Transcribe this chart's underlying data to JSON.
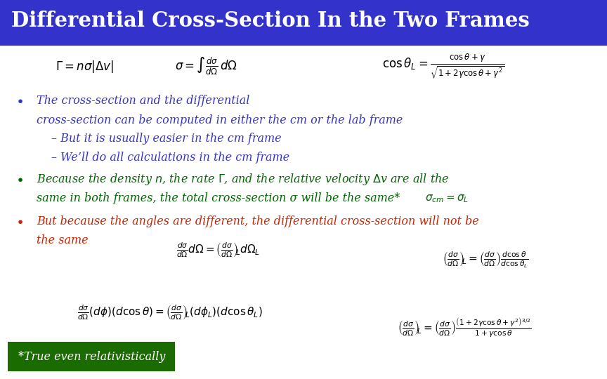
{
  "title": "Differential Cross-Section In the Two Frames",
  "title_bg_color": "#3333CC",
  "title_text_color": "#FFFFFF",
  "bg_color": "#FFFFFF",
  "blue_color": "#3333CC",
  "green_color": "#006600",
  "red_color": "#CC2200",
  "black_color": "#000000",
  "eq1": "$\\Gamma = n\\sigma|\\Delta v|$",
  "eq2": "$\\sigma = \\int\\frac{d\\sigma}{d\\Omega}\\,d\\Omega$",
  "eq3": "$\\cos\\theta_L = \\frac{\\cos\\theta + \\gamma}{\\sqrt{1 + 2\\gamma\\cos\\theta + \\gamma^2}}$",
  "bullet1_line1": "The cross-section and the differential",
  "bullet1_line2": "cross-section can be computed in either the cm or the lab frame",
  "bullet1_sub1": "– But it is usually easier in the cm frame",
  "bullet1_sub2": "– We’ll do all calculations in the cm frame",
  "bullet2_line1": "Because the density $n$, the rate $\\Gamma$, and the relative velocity $\\Delta$v are all the",
  "bullet2_line2": "same in both frames, the total cross-section σ will be the same*",
  "bullet2_eq": "$\\sigma_{cm} = \\sigma_L$",
  "bullet3_line1": "But because the angles are different, the differential cross-section will not be",
  "bullet3_line2": "the same",
  "eq_mid1": "$\\frac{d\\sigma}{d\\Omega}d\\Omega = \\left(\\frac{d\\sigma}{d\\Omega}\\right)_{\\!\\!L} d\\Omega_L$",
  "eq_mid2": "$\\left(\\frac{d\\sigma}{d\\Omega}\\right)_{\\!\\!L} = \\left(\\frac{d\\sigma}{d\\Omega}\\right)\\frac{d\\cos\\theta}{d\\cos\\theta_L}$",
  "eq_bot1": "$\\frac{d\\sigma}{d\\Omega}(d\\phi)(d\\cos\\theta) = \\left(\\frac{d\\sigma}{d\\Omega}\\right)_{\\!\\!L}(d\\phi_L)(d\\cos\\theta_L)$",
  "eq_bot2": "$\\left(\\frac{d\\sigma}{d\\Omega}\\right)_{\\!\\!L} = \\left(\\frac{d\\sigma}{d\\Omega}\\right)\\frac{\\left(1+2\\gamma\\cos\\theta+\\gamma^2\\right)^{3/2}}{1+\\gamma\\cos\\theta}$",
  "footer_text": "*True even relativistically",
  "footer_bg": "#1A6B00",
  "footer_text_color": "#FFFFFF"
}
